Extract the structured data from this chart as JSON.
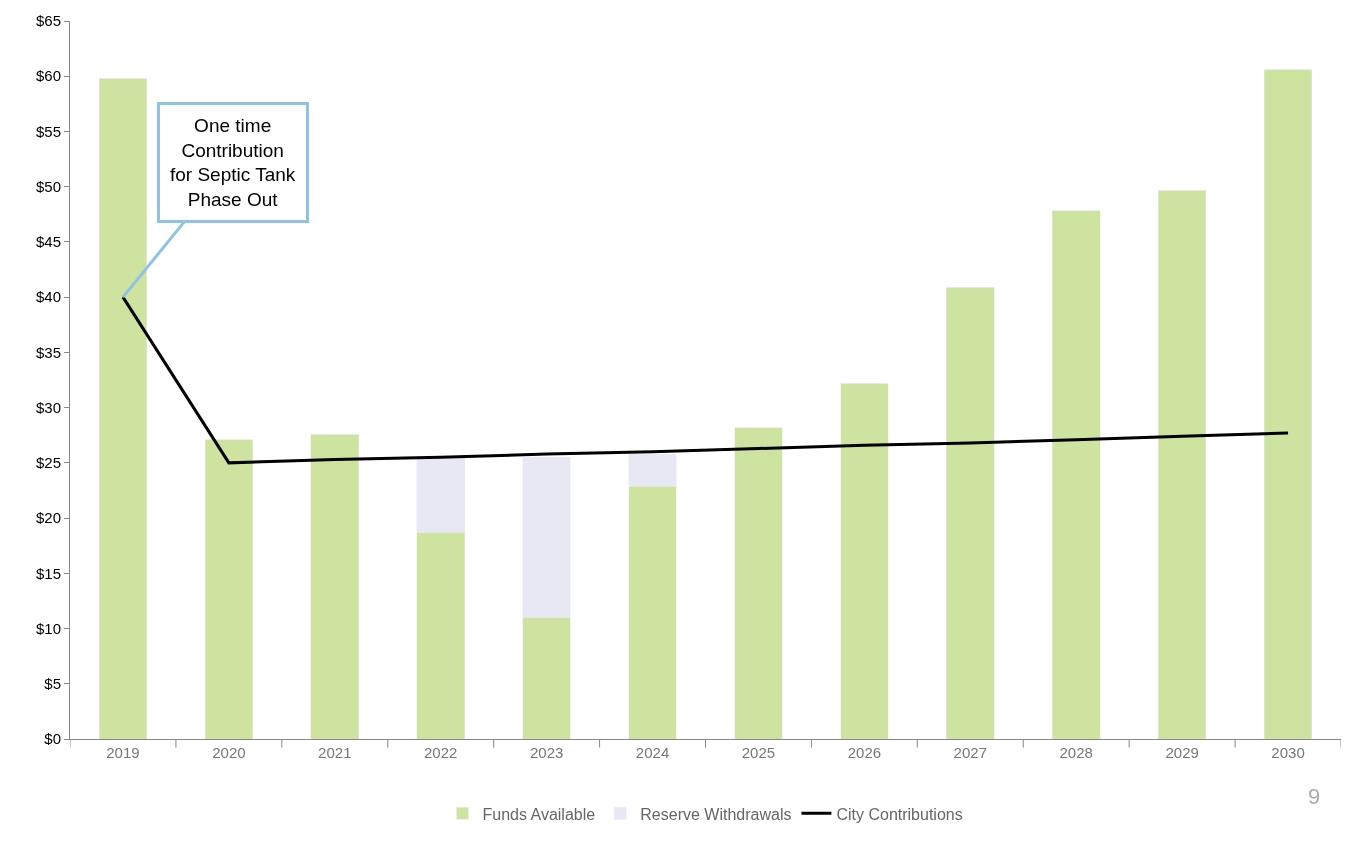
{
  "chart_data": {
    "type": "bar",
    "stacked": true,
    "categories": [
      "2019",
      "2020",
      "2021",
      "2022",
      "2023",
      "2024",
      "2025",
      "2026",
      "2027",
      "2028",
      "2029",
      "2030"
    ],
    "series": [
      {
        "name": "Funds Available",
        "color": "#cfe3a0",
        "values": [
          59.8,
          27.1,
          27.6,
          18.7,
          11.0,
          22.9,
          28.2,
          32.2,
          40.9,
          47.8,
          49.7,
          60.6
        ]
      },
      {
        "name": "Reserve Withdrawals",
        "color": "#e8e8f4",
        "values": [
          0,
          0,
          0,
          6.9,
          14.5,
          2.9,
          0,
          0,
          0,
          0,
          0,
          0
        ]
      },
      {
        "name": "City Contributions",
        "type": "line",
        "color": "#000000",
        "values": [
          40.0,
          25.0,
          25.3,
          25.5,
          25.8,
          26.0,
          26.3,
          26.6,
          26.8,
          27.1,
          27.4,
          27.7
        ]
      }
    ],
    "ylim": [
      0,
      65
    ],
    "yticks": [
      {
        "value": 0,
        "label": "$0"
      },
      {
        "value": 5,
        "label": "$5"
      },
      {
        "value": 10,
        "label": "$10"
      },
      {
        "value": 15,
        "label": "$15"
      },
      {
        "value": 20,
        "label": "$20"
      },
      {
        "value": 25,
        "label": "$25"
      },
      {
        "value": 30,
        "label": "$30"
      },
      {
        "value": 35,
        "label": "$35"
      },
      {
        "value": 40,
        "label": "$40"
      },
      {
        "value": 45,
        "label": "$45"
      },
      {
        "value": 50,
        "label": "$50"
      },
      {
        "value": 55,
        "label": "$55"
      },
      {
        "value": 60,
        "label": "$60"
      },
      {
        "value": 65,
        "label": "$65"
      }
    ],
    "annotations": [
      {
        "text": "One time\nContribution\nfor Septic Tank\nPhase Out",
        "x": "2019",
        "y": 40
      },
      "9"
    ],
    "legend": "bottom",
    "line_style": "solid",
    "marker": "none"
  }
}
